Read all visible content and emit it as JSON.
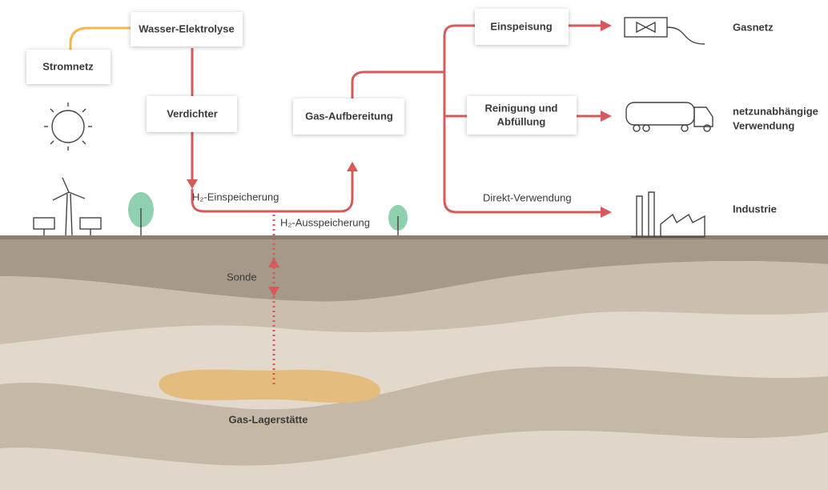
{
  "nodes": [
    {
      "lines": [
        "Stromnetz"
      ]
    },
    {
      "lines": [
        "Wasser-Elektrolyse"
      ]
    },
    {
      "lines": [
        "Verdichter"
      ]
    },
    {
      "lines": [
        "Gas-Aufbereitung"
      ]
    },
    {
      "lines": [
        "Einspeisung"
      ]
    },
    {
      "lines": [
        "Reinigung und",
        "Abfüllung"
      ]
    }
  ],
  "destinations": [
    {
      "lines": [
        "Gasnetz"
      ]
    },
    {
      "lines": [
        "netzunabhängige",
        "Verwendung"
      ]
    },
    {
      "lines": [
        "Industrie"
      ]
    }
  ],
  "flow_labels": [
    "H₂-Einspeicherung",
    "H₂-Ausspeicherung",
    "Direkt-Verwendung",
    "Sonde"
  ],
  "deposit": "Gas-Lagerstätte"
}
